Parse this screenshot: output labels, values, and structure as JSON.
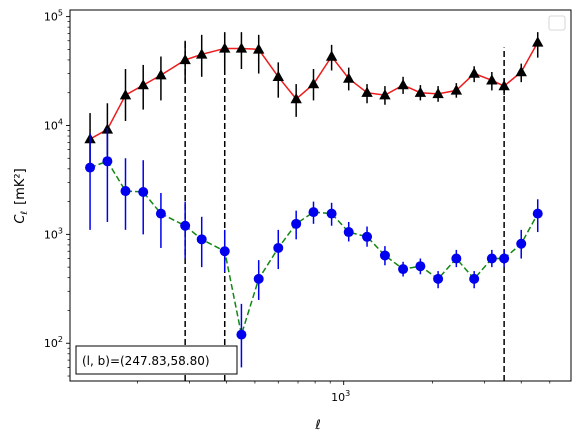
{
  "chart_data": {
    "type": "scatter",
    "xscale": "log",
    "yscale": "log",
    "xlim": [
      118,
      5900
    ],
    "ylim": [
      45,
      115000
    ],
    "xlabel": "ℓ",
    "ylabel_main": "C",
    "ylabel_sub": "ℓ",
    "ylabel_unit": "[mK²]",
    "xticks": [
      {
        "value": 1000,
        "base": "10",
        "exp": "3"
      }
    ],
    "yticks": [
      {
        "value": 100,
        "base": "10",
        "exp": "2"
      },
      {
        "value": 1000,
        "base": "10",
        "exp": "3"
      },
      {
        "value": 10000,
        "base": "10",
        "exp": "4"
      },
      {
        "value": 100000,
        "base": "10",
        "exp": "5"
      }
    ],
    "vlines": [
      {
        "x": 290,
        "ymin": 45,
        "ymax": 60000
      },
      {
        "x": 395,
        "ymin": 45,
        "ymax": 70000
      },
      {
        "x": 3500,
        "ymin": 45,
        "ymax": 52000
      }
    ],
    "annotation": "(l, b)=(247.83,58.80)",
    "legend": {
      "placement": "top-right",
      "entries": []
    },
    "series": [
      {
        "marker": "triangle",
        "marker_color": "#000000",
        "line_color": "#ee1c1c",
        "line_style": "solid",
        "errorbar_color": "#000000",
        "x": [
          138,
          158,
          182,
          209,
          240,
          290,
          330,
          395,
          450,
          515,
          600,
          690,
          790,
          910,
          1040,
          1200,
          1380,
          1590,
          1820,
          2090,
          2410,
          2770,
          3180,
          3500,
          4000,
          4550
        ],
        "y": [
          7500,
          9200,
          19000,
          23500,
          29000,
          40000,
          45000,
          51000,
          51000,
          50000,
          28000,
          17500,
          24000,
          43000,
          27000,
          20000,
          19000,
          23500,
          20000,
          19500,
          21000,
          30000,
          26000,
          23000,
          31000,
          58000
        ],
        "ylo": [
          4300,
          5300,
          11000,
          14000,
          17000,
          25000,
          28000,
          33000,
          33000,
          30000,
          18000,
          12000,
          17000,
          32000,
          21000,
          16000,
          15500,
          19500,
          17000,
          16500,
          18000,
          25000,
          21000,
          19000,
          25000,
          42000
        ],
        "yhi": [
          13000,
          16000,
          33000,
          36000,
          43000,
          60000,
          68000,
          72000,
          72000,
          68000,
          38000,
          24000,
          33000,
          55000,
          34000,
          24000,
          23000,
          28000,
          23500,
          23000,
          24500,
          35000,
          31000,
          27000,
          37000,
          72000
        ]
      },
      {
        "marker": "circle",
        "marker_color": "#0000ee",
        "line_color": "#118811",
        "line_style": "dashed",
        "errorbar_color": "#0000ee",
        "x": [
          138,
          158,
          182,
          209,
          240,
          290,
          330,
          395,
          450,
          515,
          600,
          690,
          790,
          910,
          1040,
          1200,
          1380,
          1590,
          1820,
          2090,
          2410,
          2770,
          3180,
          3500,
          4000,
          4550
        ],
        "y": [
          4100,
          4700,
          2500,
          2450,
          1550,
          1200,
          900,
          700,
          120,
          390,
          750,
          1250,
          1600,
          1550,
          1050,
          950,
          640,
          480,
          510,
          390,
          600,
          390,
          600,
          600,
          820,
          1550
        ],
        "ylo": [
          1100,
          1300,
          1100,
          1000,
          750,
          600,
          500,
          450,
          60,
          250,
          480,
          900,
          1250,
          1200,
          860,
          770,
          520,
          410,
          430,
          320,
          500,
          320,
          500,
          500,
          600,
          1050
        ],
        "yhi": [
          8500,
          9500,
          5000,
          4800,
          2400,
          2000,
          1450,
          1100,
          230,
          580,
          1100,
          1650,
          2000,
          1950,
          1300,
          1180,
          780,
          560,
          600,
          460,
          720,
          460,
          720,
          720,
          1100,
          2100
        ]
      }
    ]
  }
}
